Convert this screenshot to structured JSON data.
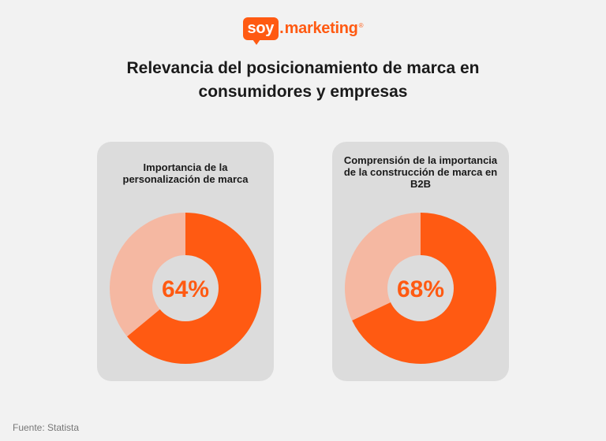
{
  "logo": {
    "word1": "soy",
    "dot": ".",
    "word2": "marketing",
    "reg": "®"
  },
  "title_line1": "Relevancia del posicionamiento de marca en",
  "title_line2": "consumidores y empresas",
  "colors": {
    "accent": "#ff5a12",
    "remainder": "#f5b8a2",
    "card": "#dcdcdc",
    "background": "#f2f2f2"
  },
  "chart_data": [
    {
      "type": "pie",
      "title": "Importancia de la personalización de marca",
      "value": 64,
      "value_label": "64%",
      "labels": [
        "Importancia de la personalización de marca",
        ""
      ],
      "values": [
        64,
        36
      ]
    },
    {
      "type": "pie",
      "title": "Comprensión de la importancia de la construcción de marca en B2B",
      "value": 68,
      "value_label": "68%",
      "labels": [
        "Comprensión de la importancia de la construcción de marca en B2B",
        ""
      ],
      "values": [
        68,
        32
      ]
    }
  ],
  "source": "Fuente: Statista"
}
